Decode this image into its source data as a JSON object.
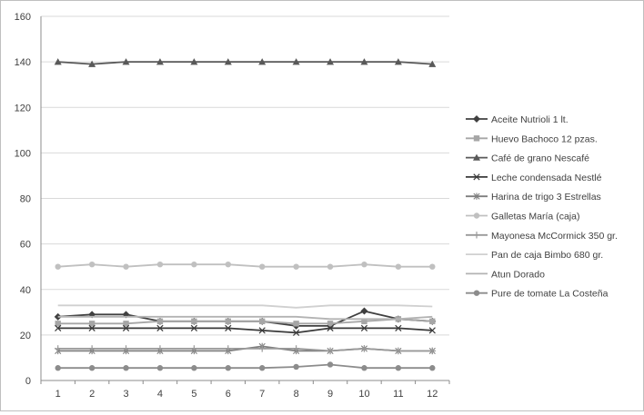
{
  "colors": {
    "background": "#ffffff",
    "border": "#bfbfbf",
    "gridline": "#d9d9d9",
    "axis": "#8c8c8c",
    "text": "#404040"
  },
  "chart_data": {
    "type": "line",
    "title": "",
    "xlabel": "",
    "ylabel": "",
    "ylim": [
      0,
      160
    ],
    "yticks": [
      0,
      20,
      40,
      60,
      80,
      100,
      120,
      140,
      160
    ],
    "x": [
      1,
      2,
      3,
      4,
      5,
      6,
      7,
      8,
      9,
      10,
      11,
      12
    ],
    "grid": true,
    "legend_position": "right",
    "series": [
      {
        "name": "Aceite Nutrioli 1 lt.",
        "color": "#404040",
        "marker": "diamond",
        "values": [
          28,
          29,
          29,
          26,
          26,
          26,
          26,
          24,
          24,
          30.5,
          27,
          26
        ]
      },
      {
        "name": "Huevo Bachoco 12 pzas.",
        "color": "#a6a6a6",
        "marker": "square",
        "values": [
          25,
          25,
          25,
          26,
          26,
          26,
          26,
          25,
          25,
          26,
          27,
          26
        ]
      },
      {
        "name": "Café de grano Nescafé",
        "color": "#595959",
        "marker": "triangle",
        "values": [
          140,
          139,
          140,
          140,
          140,
          140,
          140,
          140,
          140,
          140,
          140,
          139
        ]
      },
      {
        "name": "Leche condensada Nestlé",
        "color": "#3a3a3a",
        "marker": "x",
        "values": [
          23,
          23,
          23,
          23,
          23,
          23,
          22,
          21,
          23,
          23,
          23,
          22
        ]
      },
      {
        "name": "Harina de trigo 3 Estrellas",
        "color": "#7f7f7f",
        "marker": "star",
        "values": [
          13,
          13,
          13,
          13,
          13,
          13,
          15,
          13,
          13,
          14,
          13,
          13
        ]
      },
      {
        "name": "Galletas María (caja)",
        "color": "#c0c0c0",
        "marker": "circle",
        "values": [
          50,
          51,
          50,
          51,
          51,
          51,
          50,
          50,
          50,
          51,
          50,
          50
        ]
      },
      {
        "name": "Mayonesa McCormick 350 gr.",
        "color": "#999999",
        "marker": "plus",
        "values": [
          14,
          14,
          14,
          14,
          14,
          14,
          14,
          14,
          13,
          14,
          13,
          13
        ]
      },
      {
        "name": "Pan de caja Bimbo 680 gr.",
        "color": "#d0d0d0",
        "marker": "none",
        "values": [
          33,
          33,
          33,
          33,
          33,
          33,
          33,
          32,
          33,
          33,
          33,
          32.5
        ]
      },
      {
        "name": "Atun Dorado",
        "color": "#b3b3b3",
        "marker": "none",
        "values": [
          28,
          28,
          28,
          28,
          28,
          28,
          28,
          28,
          27,
          27,
          27,
          28
        ]
      },
      {
        "name": "Pure de tomate La Costeña",
        "color": "#8c8c8c",
        "marker": "circle",
        "values": [
          5.5,
          5.5,
          5.5,
          5.5,
          5.5,
          5.5,
          5.5,
          6,
          7,
          5.5,
          5.5,
          5.5
        ]
      }
    ]
  }
}
